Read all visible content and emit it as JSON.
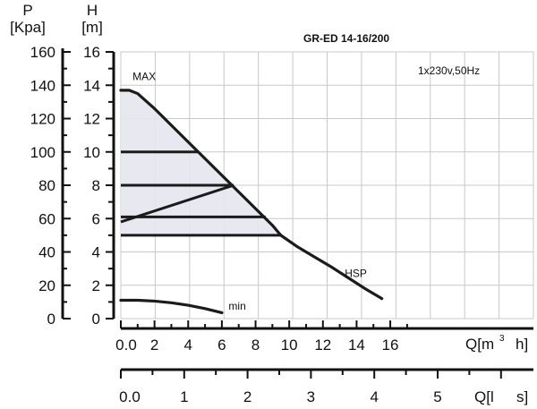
{
  "chart_data": {
    "type": "line",
    "title": "GR-ED 14-16/200",
    "annotation_supply": "1x230v,50Hz",
    "grid": true,
    "legend": "none",
    "axes": {
      "p": {
        "label_line1": "P",
        "label_line2": "[Kpa]",
        "range": [
          0,
          160
        ],
        "ticks": [
          "0",
          "20",
          "40",
          "60",
          "80",
          "100",
          "120",
          "140",
          "160"
        ]
      },
      "h": {
        "label_line1": "H",
        "label_line2": "[m]",
        "range": [
          0,
          16
        ],
        "ticks": [
          "0",
          "2",
          "4",
          "6",
          "8",
          "10",
          "12",
          "14",
          "16"
        ]
      },
      "q_m3h": {
        "label_left": "Q[m",
        "label_sup": "3",
        "label_right": "h]",
        "range": [
          0,
          16
        ],
        "ticks": [
          "0.0",
          "2",
          "4",
          "6",
          "8",
          "10",
          "12",
          "14",
          "16"
        ]
      },
      "q_ls": {
        "label_left": "Q[l",
        "label_right": "s]",
        "range": [
          0,
          5
        ],
        "ticks": [
          "0.0",
          "1",
          "2",
          "3",
          "4",
          "5"
        ]
      }
    },
    "series": [
      {
        "name": "MAX",
        "x": [
          0,
          0.5,
          1,
          2,
          3,
          4,
          5,
          6,
          7,
          8,
          9,
          9.5
        ],
        "y": [
          13.7,
          13.7,
          13.5,
          12.6,
          11.6,
          10.6,
          9.6,
          8.6,
          7.6,
          6.6,
          5.6,
          5.0
        ]
      },
      {
        "name": "HSP",
        "x": [
          9.5,
          10.5,
          11.5,
          12.5,
          13.5,
          14.5,
          15.5
        ],
        "y": [
          5.0,
          4.3,
          3.7,
          3.1,
          2.45,
          1.8,
          1.2
        ]
      },
      {
        "name": "min",
        "x": [
          0,
          1,
          2,
          3,
          4,
          5,
          6
        ],
        "y": [
          1.1,
          1.1,
          1.05,
          0.95,
          0.8,
          0.6,
          0.35
        ]
      }
    ],
    "operating_bands": [
      {
        "h": 10,
        "x_end": 4.6
      },
      {
        "h": 8,
        "x_end": 6.7
      },
      {
        "h": 6.1,
        "x_end": 8.6
      },
      {
        "h": 5.0,
        "x_end": 9.5
      }
    ],
    "diagonal": {
      "x": [
        0,
        6.7
      ],
      "y": [
        5.8,
        8.0
      ]
    }
  }
}
